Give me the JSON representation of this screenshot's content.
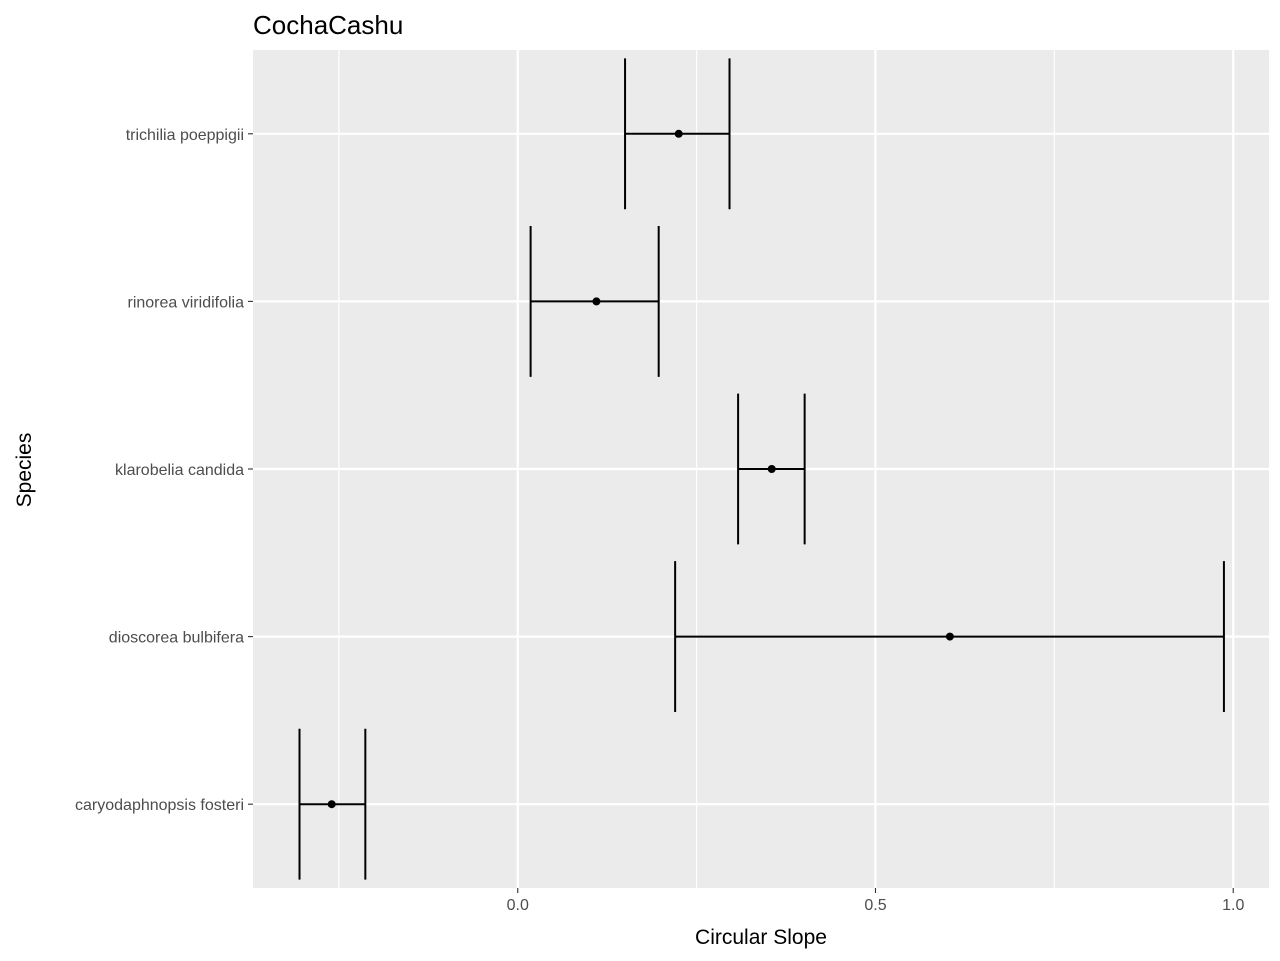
{
  "chart_data": {
    "type": "errorbar",
    "title": "CochaCashu",
    "xlabel": "Circular Slope",
    "ylabel": "Species",
    "xlim": [
      -0.37,
      1.05
    ],
    "x_ticks": [
      0.0,
      0.5,
      1.0
    ],
    "x_tick_labels": [
      "0.0",
      "0.5",
      "1.0"
    ],
    "grid": true,
    "categories": [
      "caryodaphnopsis fosteri",
      "dioscorea bulbifera",
      "klarobelia candida",
      "rinorea viridifolia",
      "trichilia poeppigii"
    ],
    "series": [
      {
        "estimate": [
          -0.26,
          0.604,
          0.355,
          0.11,
          0.225
        ],
        "lower": [
          -0.305,
          0.22,
          0.308,
          0.018,
          0.15
        ],
        "upper": [
          -0.213,
          0.987,
          0.401,
          0.197,
          0.296
        ]
      }
    ],
    "colors": {
      "panel_background": "#ebebeb",
      "grid_major": "#ffffff",
      "mark": "#000000"
    }
  }
}
